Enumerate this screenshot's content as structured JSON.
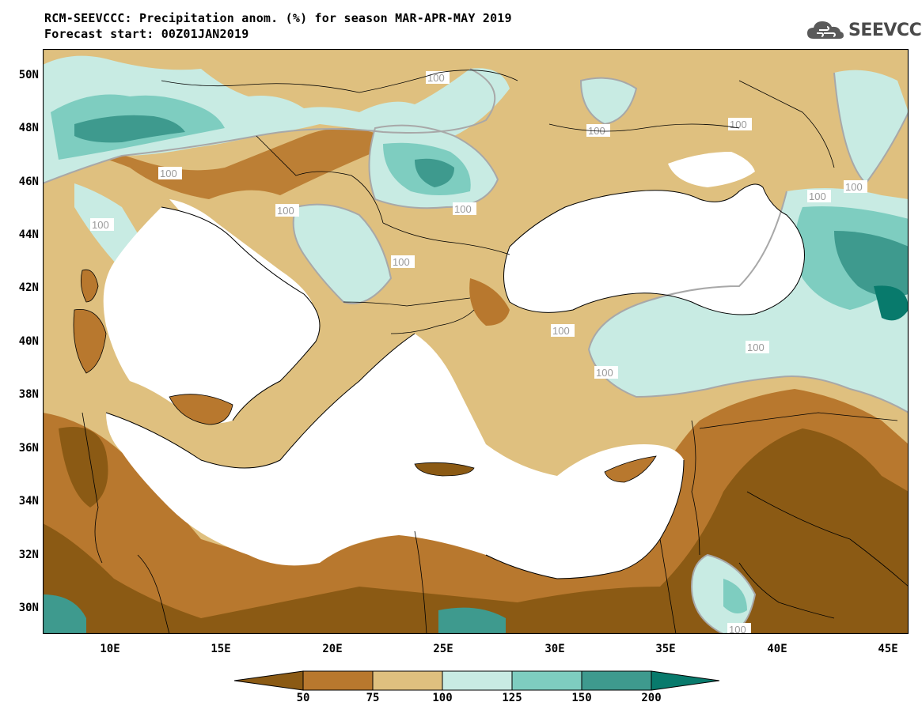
{
  "title": {
    "line1": "RCM-SEEVCCC: Precipitation anom. (%) for season MAR-APR-MAY 2019",
    "line2": "Forecast start: 00Z01JAN2019"
  },
  "logo": {
    "text": "SEEVCCC",
    "icon": "cloud-icon"
  },
  "latitude_labels": [
    "50N",
    "48N",
    "46N",
    "44N",
    "42N",
    "40N",
    "38N",
    "36N",
    "34N",
    "32N",
    "30N"
  ],
  "longitude_labels": [
    "10E",
    "15E",
    "20E",
    "25E",
    "30E",
    "35E",
    "40E",
    "45E"
  ],
  "contour_label": "100",
  "colorbar": {
    "labels": [
      "50",
      "75",
      "100",
      "125",
      "150",
      "200"
    ],
    "colors": [
      "#8b5a14",
      "#b8782e",
      "#dfc07f",
      "#c8ebe3",
      "#7ecdc0",
      "#3e9a8e",
      "#087a6c"
    ]
  },
  "map_colors": {
    "very_dry": "#8b5a14",
    "dry": "#b8782e",
    "slightly_dry": "#dfc07f",
    "near_normal_wet": "#c8ebe3",
    "wet": "#7ecdc0",
    "very_wet": "#3e9a8e",
    "extreme_wet": "#087a6c",
    "sea": "#ffffff"
  }
}
